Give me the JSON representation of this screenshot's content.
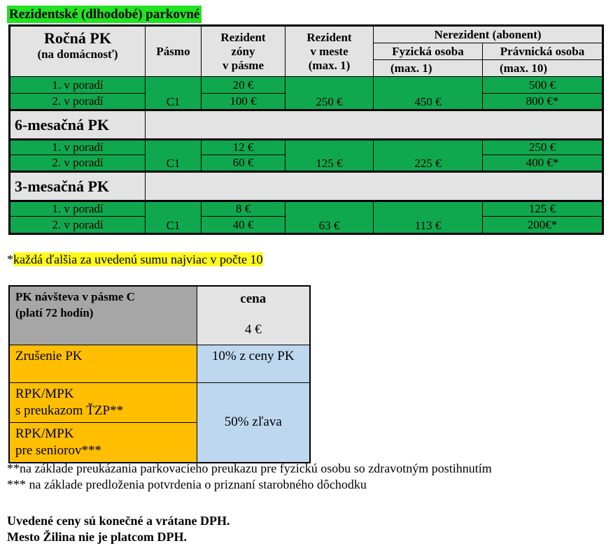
{
  "title": "Rezidentské (dlhodobé) parkovné",
  "main_table": {
    "annual_label_1": "Ročná PK",
    "annual_label_2": "(na domácnosť)",
    "zone_header": "Pásmo",
    "res_zone_header_1": "Rezident",
    "res_zone_header_2": "zóny",
    "res_zone_header_3": "v pásme",
    "res_city_header_1": "Rezident",
    "res_city_header_2": "v meste",
    "res_city_header_3": "(max. 1)",
    "nonres_header": "Nerezident (abonent)",
    "natural_header_1": "Fyzická   osoba",
    "natural_header_2": "(max. 1)",
    "legal_header_1": "Právnická osoba",
    "legal_header_2": "(max. 10)",
    "annual": {
      "row1_label": "1. v poradí",
      "row2_label": "2. v poradí",
      "zone": "C1",
      "res_zone_1": "20 €",
      "res_zone_2": "100 €",
      "res_city": "250 €",
      "natural": "450 €",
      "legal_1": "500 €",
      "legal_2": "800 €*"
    },
    "six_month_label": "6-mesačná PK",
    "six_month": {
      "row1_label": "1. v poradí",
      "row2_label": "2. v poradí",
      "zone": "C1",
      "res_zone_1": "12 €",
      "res_zone_2": "60 €",
      "res_city": "125 €",
      "natural": "225 €",
      "legal_1": "250 €",
      "legal_2": "400 €*"
    },
    "three_month_label": "3-mesačná PK",
    "three_month": {
      "row1_label": "1. v poradí",
      "row2_label": "2. v poradí",
      "zone": "C1",
      "res_zone_1": "8 €",
      "res_zone_2": "40 €",
      "res_city": "63 €",
      "natural": "113 €",
      "legal_1": "125 €",
      "legal_2": "200€*"
    }
  },
  "note_star_prefix": "*",
  "note_star": "každá ďalšia za uvedenú sumu najviac v počte 10",
  "visit_table": {
    "visit_label_1": "PK návšteva v pásme C",
    "visit_label_2": "(platí 72 hodín)",
    "price_header": "cena",
    "visit_price": "4 €",
    "cancel_label": "Zrušenie PK",
    "cancel_value": "10% z ceny PK",
    "ztp_label_1": "RPK/MPK",
    "ztp_label_2": "s preukazom ŤZP**",
    "discount_value": "50% zľava",
    "senior_label_1": "RPK/MPK",
    "senior_label_2": "pre seniorov***"
  },
  "footnote_2": "**na základe preukázania parkovacieho preukazu pre fyzickú osobu so zdravotným postihnutím",
  "footnote_3": "*** na základe predloženia potvrdenia o priznaní starobného dôchodku",
  "final_1": "Uvedené ceny sú konečné a vrátane DPH.",
  "final_2": "Mesto Žilina nie je platcom DPH.",
  "colors": {
    "title_bg": "#22e222",
    "cell_green": "#10a84e",
    "header_gray": "#e3e3e3",
    "highlight_yellow": "#fffa1e",
    "orange": "#ffbf00",
    "light_blue": "#bdd7ee",
    "dark_gray": "#a6a6a6"
  }
}
